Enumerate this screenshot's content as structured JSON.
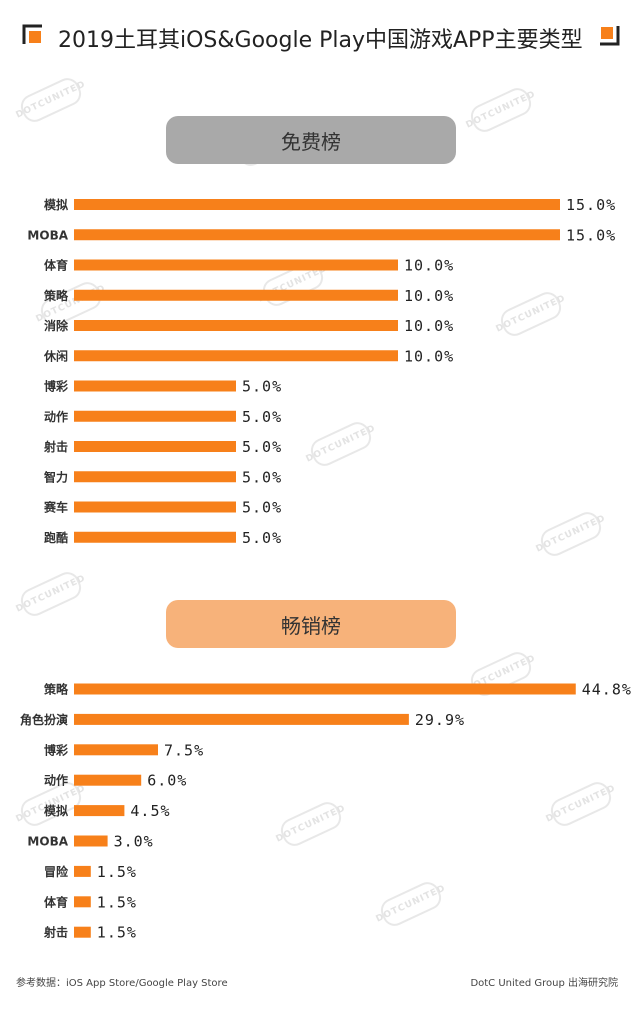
{
  "page": {
    "title": "2019土耳其iOS&Google Play中国游戏APP主要类型",
    "accent": "#f7801a",
    "gray_pill": "#a9a9a9",
    "orange_pill": "#f7b27a"
  },
  "watermark_text": "DOTCUNITED",
  "chart_data": [
    {
      "type": "bar",
      "orientation": "horizontal",
      "title": "免费榜",
      "categories": [
        "模拟",
        "MOBA",
        "体育",
        "策略",
        "消除",
        "休闲",
        "博彩",
        "动作",
        "射击",
        "智力",
        "赛车",
        "跑酷"
      ],
      "values": [
        15.0,
        15.0,
        10.0,
        10.0,
        10.0,
        10.0,
        5.0,
        5.0,
        5.0,
        5.0,
        5.0,
        5.0
      ],
      "value_labels": [
        "15.0%",
        "15.0%",
        "10.0%",
        "10.0%",
        "10.0%",
        "10.0%",
        "5.0%",
        "5.0%",
        "5.0%",
        "5.0%",
        "5.0%",
        "5.0%"
      ],
      "unit": "%",
      "color": "#f7801a"
    },
    {
      "type": "bar",
      "orientation": "horizontal",
      "title": "畅销榜",
      "categories": [
        "策略",
        "角色扮演",
        "博彩",
        "动作",
        "模拟",
        "MOBA",
        "冒险",
        "体育",
        "射击"
      ],
      "values": [
        44.8,
        29.9,
        7.5,
        6.0,
        4.5,
        3.0,
        1.5,
        1.5,
        1.5
      ],
      "value_labels": [
        "44.8%",
        "29.9%",
        "7.5%",
        "6.0%",
        "4.5%",
        "3.0%",
        "1.5%",
        "1.5%",
        "1.5%"
      ],
      "unit": "%",
      "color": "#f7801a"
    }
  ],
  "footer": {
    "source": "参考数据：iOS App Store/Google Play Store",
    "credit": "DotC United Group  出海研究院"
  }
}
